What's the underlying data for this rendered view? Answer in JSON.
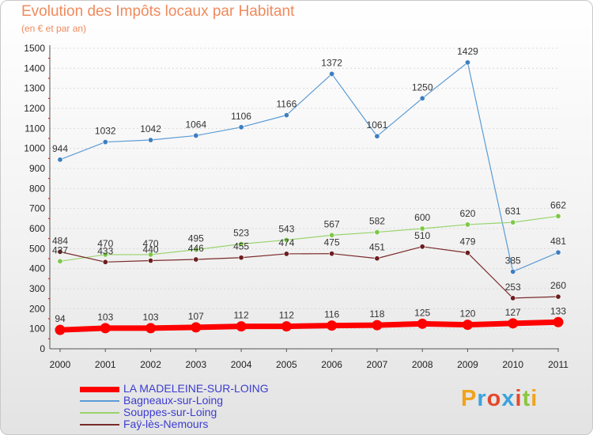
{
  "title": "Evolution des Impôts locaux par Habitant",
  "subtitle": "(en € et par an)",
  "logo": {
    "text": "Proxiti",
    "letter_colors": [
      "#f0a31c",
      "#3aa2dc",
      "#e4482c",
      "#3aa2dc",
      "#e4482c",
      "#8cc63f",
      "#f0a31c"
    ]
  },
  "chart_data": {
    "type": "line",
    "title": "Evolution des Impôts locaux par Habitant",
    "subtitle": "(en € et par an)",
    "xlabel": "",
    "ylabel": "",
    "ylim": [
      0,
      1500
    ],
    "yticks": [
      0,
      100,
      200,
      300,
      400,
      500,
      600,
      700,
      800,
      900,
      1000,
      1100,
      1200,
      1300,
      1400,
      1500
    ],
    "grid": "horizontal",
    "legend": "bottom-left",
    "x": [
      "2000",
      "2001",
      "2002",
      "2003",
      "2004",
      "2005",
      "2006",
      "2007",
      "2008",
      "2009",
      "2010",
      "2011"
    ],
    "series": [
      {
        "name": "Bagneaux-sur-Loing",
        "color": "#5b9bd5",
        "marker": "#3f7fc0",
        "width": 1.2,
        "values": [
          944,
          1032,
          1042,
          1064,
          1106,
          1166,
          1372,
          1061,
          1250,
          1429,
          385,
          481
        ]
      },
      {
        "name": "Souppes-sur-Loing",
        "color": "#98d46c",
        "marker": "#7ec84a",
        "width": 1.2,
        "values": [
          437,
          470,
          470,
          495,
          523,
          543,
          567,
          582,
          600,
          620,
          631,
          662
        ]
      },
      {
        "name": "Faÿ-lès-Nemours",
        "color": "#7a2a2a",
        "marker": "#6b1f1f",
        "width": 1.2,
        "values": [
          484,
          433,
          440,
          446,
          455,
          474,
          475,
          451,
          510,
          479,
          253,
          260
        ]
      },
      {
        "name": "LA MADELEINE-SUR-LOING",
        "color": "#ff0000",
        "marker": "#ff0000",
        "width": 7,
        "values": [
          94,
          103,
          103,
          107,
          112,
          112,
          116,
          118,
          125,
          120,
          127,
          133
        ]
      }
    ],
    "legend_order": [
      "LA MADELEINE-SUR-LOING",
      "Bagneaux-sur-Loing",
      "Souppes-sur-Loing",
      "Faÿ-lès-Nemours"
    ]
  }
}
